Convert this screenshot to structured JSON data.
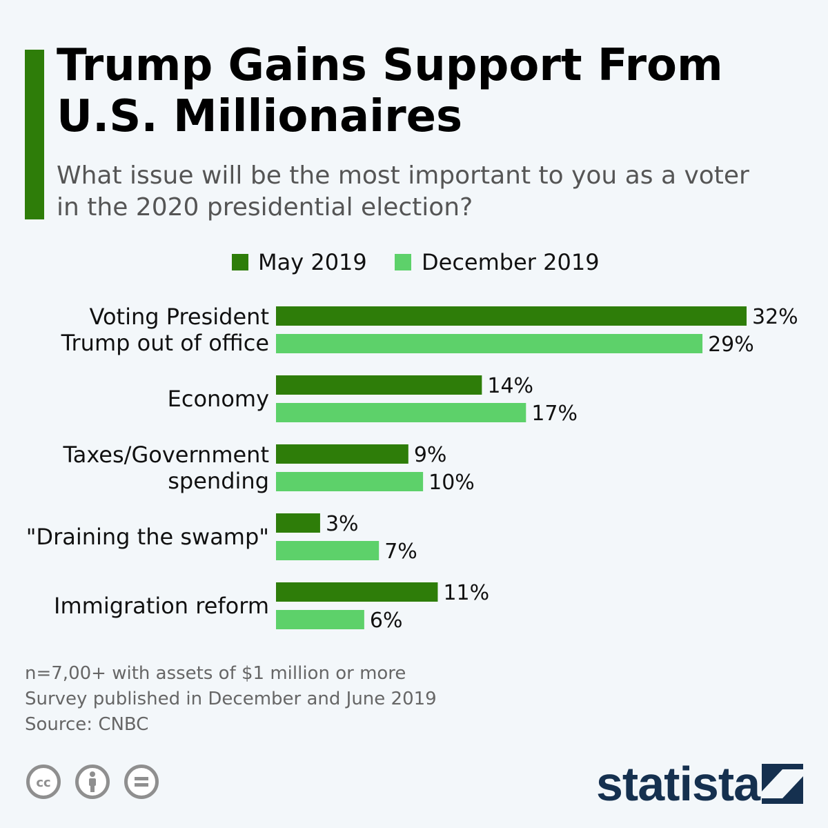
{
  "title": {
    "line1": "Trump Gains Support From",
    "line2": "U.S. Millionaires"
  },
  "subtitle": {
    "line1": "What issue will be the most important to you as a voter",
    "line2": "in the 2020 presidential election?"
  },
  "colors": {
    "accent": "#2e7d09",
    "may": "#2e7d09",
    "december": "#5dd16a",
    "brand": "#15304f"
  },
  "legend": {
    "may": "May 2019",
    "december": "December 2019"
  },
  "chart_data": {
    "type": "bar",
    "orientation": "horizontal",
    "categories": [
      [
        "Voting President",
        "Trump out of office"
      ],
      [
        "Economy"
      ],
      [
        "Taxes/Government",
        "spending"
      ],
      [
        "\"Draining the swamp\""
      ],
      [
        "Immigration reform"
      ]
    ],
    "series": [
      {
        "name": "May 2019",
        "values": [
          32,
          14,
          9,
          3,
          11
        ],
        "labels": [
          "32%",
          "14%",
          "9%",
          "3%",
          "11%"
        ]
      },
      {
        "name": "December 2019",
        "values": [
          29,
          17,
          10,
          7,
          6
        ],
        "labels": [
          "29%",
          "17%",
          "10%",
          "7%",
          "6%"
        ]
      }
    ],
    "unit": "%",
    "xlim": [
      0,
      32
    ],
    "grid": false,
    "legend": "top-center"
  },
  "footer": {
    "sample": "n=7,00+ with assets of $1 million or more",
    "published": "Survey published in December and June 2019",
    "source": "Source: CNBC"
  },
  "license_icons": [
    "creative-commons-icon",
    "attribution-icon",
    "no-derivatives-icon"
  ],
  "brand": {
    "name": "statista"
  }
}
